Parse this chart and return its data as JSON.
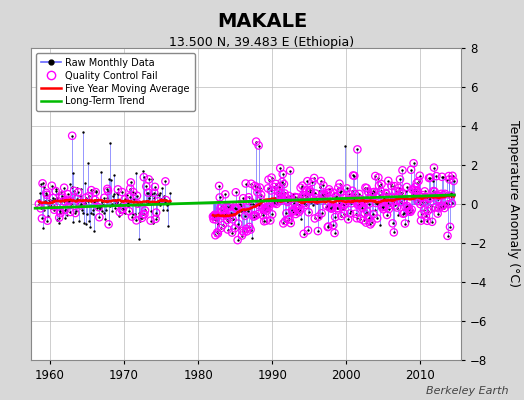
{
  "title": "MAKALE",
  "subtitle": "13.500 N, 39.483 E (Ethiopia)",
  "ylabel": "Temperature Anomaly (°C)",
  "credit": "Berkeley Earth",
  "xlim": [
    1957.5,
    2015.5
  ],
  "ylim": [
    -8,
    8
  ],
  "yticks": [
    -8,
    -6,
    -4,
    -2,
    0,
    2,
    4,
    6,
    8
  ],
  "xticks": [
    1960,
    1970,
    1980,
    1990,
    2000,
    2010
  ],
  "long_term_trend_y": 0.12,
  "background_color": "#d8d8d8",
  "plot_bg_color": "#ffffff",
  "raw_line_color": "#6666ff",
  "raw_dot_color": "#000000",
  "qc_fail_color": "#ff00ff",
  "moving_avg_color": "#ff0000",
  "trend_color": "#00bb00",
  "title_fontsize": 14,
  "subtitle_fontsize": 9,
  "ylabel_fontsize": 9,
  "credit_fontsize": 8
}
